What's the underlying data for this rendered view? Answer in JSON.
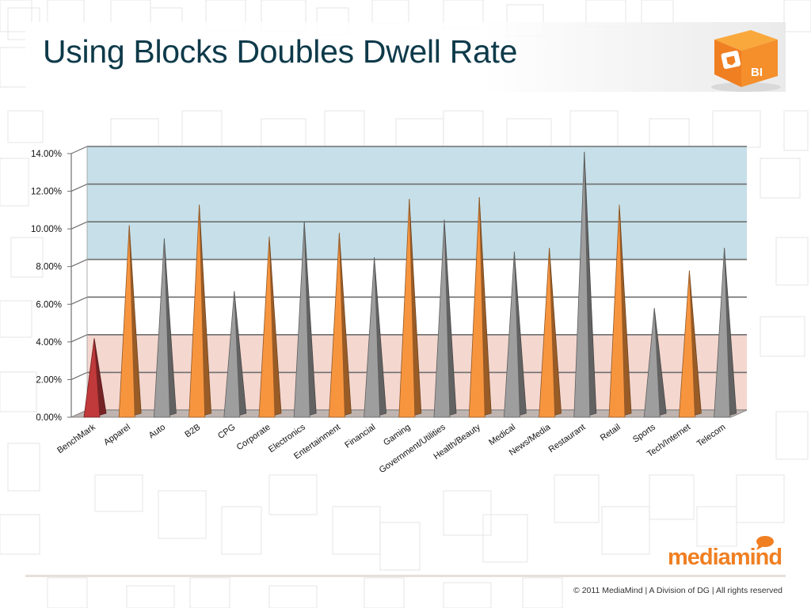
{
  "slide": {
    "title": "Using Blocks Doubles Dwell Rate",
    "brand": "mediamind",
    "copyright": "© 2011 MediaMind | A Division of DG | All rights reserved",
    "logo_icon": "bi-cube-logo",
    "logo_text": "BI"
  },
  "chart_data": {
    "type": "bar",
    "title": "",
    "xlabel": "",
    "ylabel": "",
    "ylim": [
      0,
      14
    ],
    "y_ticks": [
      0,
      2,
      4,
      6,
      8,
      10,
      12,
      14
    ],
    "y_tick_labels": [
      "0.00%",
      "2.00%",
      "4.00%",
      "6.00%",
      "8.00%",
      "10.00%",
      "12.00%",
      "14.00%"
    ],
    "categories": [
      "BenchMark",
      "Apparel",
      "Auto",
      "B2B",
      "CPG",
      "Corporate",
      "Electronics",
      "Entertainment",
      "Financial",
      "Gaming",
      "Government/Utilities",
      "Health/Beauty",
      "Medical",
      "News/Media",
      "Restaurant",
      "Retail",
      "Sports",
      "Tech/Internet",
      "Telecom"
    ],
    "values": [
      4.0,
      10.0,
      9.3,
      11.1,
      6.5,
      9.4,
      10.2,
      9.6,
      8.3,
      11.4,
      10.3,
      11.5,
      8.6,
      8.8,
      13.9,
      11.1,
      5.6,
      7.6,
      8.8
    ],
    "colors": [
      "#c0393b",
      "#f7953f",
      "#9e9e9e",
      "#f7953f",
      "#9e9e9e",
      "#f7953f",
      "#9e9e9e",
      "#f7953f",
      "#9e9e9e",
      "#f7953f",
      "#9e9e9e",
      "#f7953f",
      "#9e9e9e",
      "#f7953f",
      "#9e9e9e",
      "#f7953f",
      "#9e9e9e",
      "#f7953f",
      "#9e9e9e"
    ],
    "bands": [
      {
        "from": 0,
        "to": 4.0,
        "color": "#f4d7cf"
      },
      {
        "from": 8.0,
        "to": 14.0,
        "color": "#c6dfe8"
      }
    ],
    "grid": true,
    "legend": "none"
  }
}
